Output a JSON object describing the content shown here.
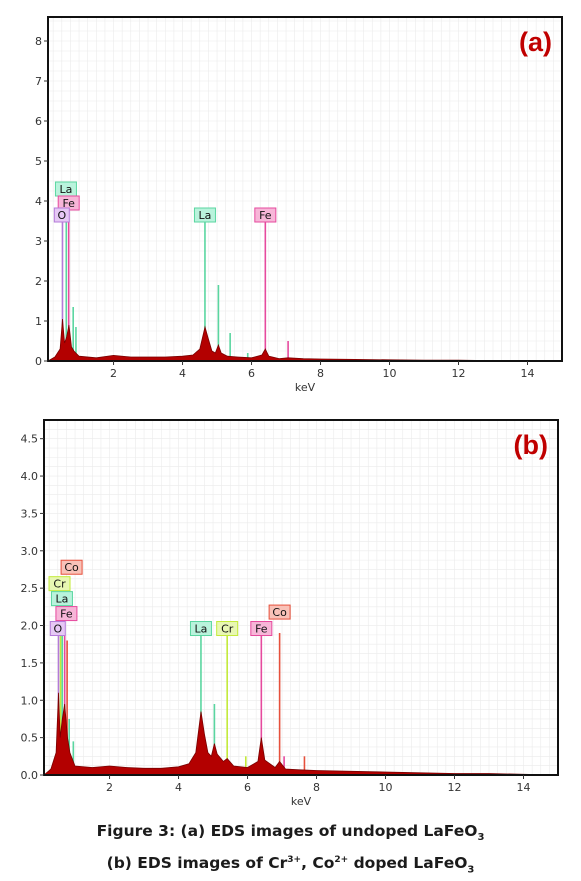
{
  "chart_data": [
    {
      "type": "line",
      "panel_label": "(a)",
      "xlabel": "keV",
      "xlim": [
        0.1,
        15
      ],
      "ylim": [
        0,
        8.6
      ],
      "x_ticks": [
        2,
        4,
        6,
        8,
        10,
        12,
        14
      ],
      "y_ticks": [
        0,
        1,
        2,
        3,
        4,
        5,
        6,
        7,
        8
      ],
      "y_tick_labels": [
        "0",
        "1",
        "2",
        "3",
        "4",
        "5",
        "6",
        "7",
        "8"
      ],
      "grid": true,
      "spectrum_color": "#b30000",
      "peaks": [
        {
          "x": 0.52,
          "y": 4.0,
          "color": "#b47bd9"
        },
        {
          "x": 0.63,
          "y": 3.6,
          "color": "#5ad6a0"
        },
        {
          "x": 0.7,
          "y": 3.5,
          "color": "#e64a9e"
        },
        {
          "x": 0.83,
          "y": 1.35,
          "color": "#5ad6a0"
        },
        {
          "x": 0.91,
          "y": 0.85,
          "color": "#5ad6a0"
        },
        {
          "x": 4.65,
          "y": 3.55,
          "color": "#5ad6a0"
        },
        {
          "x": 5.04,
          "y": 1.9,
          "color": "#5ad6a0"
        },
        {
          "x": 5.38,
          "y": 0.7,
          "color": "#5ad6a0"
        },
        {
          "x": 5.89,
          "y": 0.2,
          "color": "#5ad6a0"
        },
        {
          "x": 6.4,
          "y": 3.55,
          "color": "#e64a9e"
        },
        {
          "x": 7.06,
          "y": 0.5,
          "color": "#e64a9e"
        }
      ],
      "spectrum": [
        [
          0.1,
          0
        ],
        [
          0.3,
          0.1
        ],
        [
          0.45,
          0.3
        ],
        [
          0.52,
          1.05
        ],
        [
          0.58,
          0.45
        ],
        [
          0.64,
          0.6
        ],
        [
          0.71,
          0.9
        ],
        [
          0.78,
          0.35
        ],
        [
          0.85,
          0.25
        ],
        [
          1.0,
          0.12
        ],
        [
          1.5,
          0.08
        ],
        [
          2.0,
          0.14
        ],
        [
          2.5,
          0.1
        ],
        [
          3.0,
          0.1
        ],
        [
          3.5,
          0.1
        ],
        [
          4.0,
          0.12
        ],
        [
          4.3,
          0.15
        ],
        [
          4.5,
          0.3
        ],
        [
          4.65,
          0.85
        ],
        [
          4.75,
          0.55
        ],
        [
          4.85,
          0.25
        ],
        [
          4.95,
          0.2
        ],
        [
          5.04,
          0.4
        ],
        [
          5.12,
          0.2
        ],
        [
          5.3,
          0.12
        ],
        [
          5.6,
          0.1
        ],
        [
          6.0,
          0.08
        ],
        [
          6.3,
          0.15
        ],
        [
          6.4,
          0.3
        ],
        [
          6.5,
          0.12
        ],
        [
          6.8,
          0.06
        ],
        [
          7.06,
          0.08
        ],
        [
          7.5,
          0.06
        ],
        [
          8.0,
          0.05
        ],
        [
          9.0,
          0.04
        ],
        [
          10.0,
          0.03
        ],
        [
          11.0,
          0.02
        ],
        [
          12.0,
          0.02
        ],
        [
          13.0,
          0.01
        ],
        [
          14.0,
          0.01
        ],
        [
          15.0,
          0
        ]
      ],
      "labels": [
        {
          "text": "La",
          "x": 0.62,
          "y": 4.3,
          "bg": "#b9f3dc",
          "border": "#5ad6a0"
        },
        {
          "text": "Fe",
          "x": 0.7,
          "y": 3.95,
          "bg": "#f7b6d8",
          "border": "#e64a9e"
        },
        {
          "text": "O",
          "x": 0.5,
          "y": 3.65,
          "bg": "#e6c8f5",
          "border": "#b47bd9"
        },
        {
          "text": "La",
          "x": 4.65,
          "y": 3.65,
          "bg": "#b9f3dc",
          "border": "#5ad6a0"
        },
        {
          "text": "Fe",
          "x": 6.4,
          "y": 3.65,
          "bg": "#f7b6d8",
          "border": "#e64a9e"
        }
      ]
    },
    {
      "type": "line",
      "panel_label": "(b)",
      "xlabel": "keV",
      "xlim": [
        0.1,
        15
      ],
      "ylim": [
        0,
        4.75
      ],
      "x_ticks": [
        2,
        4,
        6,
        8,
        10,
        12,
        14
      ],
      "y_ticks": [
        0,
        0.5,
        1.0,
        1.5,
        2.0,
        2.5,
        3.0,
        3.5,
        4.0,
        4.5
      ],
      "y_tick_labels": [
        "0.0",
        "0.5",
        "1.0",
        "1.5",
        "2.0",
        "2.5",
        "3.0",
        "3.5",
        "4.0",
        "4.5"
      ],
      "grid": true,
      "spectrum_color": "#b30000",
      "peaks": [
        {
          "x": 0.52,
          "y": 2.2,
          "color": "#b47bd9"
        },
        {
          "x": 0.63,
          "y": 2.05,
          "color": "#5ad6a0"
        },
        {
          "x": 0.7,
          "y": 1.9,
          "color": "#e64a9e"
        },
        {
          "x": 0.77,
          "y": 1.8,
          "color": "#e6503c"
        },
        {
          "x": 0.58,
          "y": 1.9,
          "color": "#c3ea3a"
        },
        {
          "x": 0.83,
          "y": 0.75,
          "color": "#5ad6a0"
        },
        {
          "x": 0.95,
          "y": 0.45,
          "color": "#5ad6a0"
        },
        {
          "x": 4.65,
          "y": 1.9,
          "color": "#5ad6a0"
        },
        {
          "x": 5.04,
          "y": 0.95,
          "color": "#5ad6a0"
        },
        {
          "x": 5.41,
          "y": 1.9,
          "color": "#c3ea3a"
        },
        {
          "x": 5.95,
          "y": 0.25,
          "color": "#c3ea3a"
        },
        {
          "x": 6.4,
          "y": 1.9,
          "color": "#e64a9e"
        },
        {
          "x": 6.93,
          "y": 1.9,
          "color": "#e6503c"
        },
        {
          "x": 7.06,
          "y": 0.25,
          "color": "#e64a9e"
        },
        {
          "x": 7.65,
          "y": 0.25,
          "color": "#e6503c"
        }
      ],
      "spectrum": [
        [
          0.1,
          0
        ],
        [
          0.3,
          0.08
        ],
        [
          0.45,
          0.3
        ],
        [
          0.52,
          1.1
        ],
        [
          0.57,
          0.5
        ],
        [
          0.63,
          0.75
        ],
        [
          0.7,
          0.95
        ],
        [
          0.78,
          0.5
        ],
        [
          0.85,
          0.3
        ],
        [
          1.0,
          0.12
        ],
        [
          1.5,
          0.1
        ],
        [
          2.0,
          0.12
        ],
        [
          2.5,
          0.1
        ],
        [
          3.0,
          0.09
        ],
        [
          3.5,
          0.09
        ],
        [
          4.0,
          0.11
        ],
        [
          4.3,
          0.15
        ],
        [
          4.5,
          0.3
        ],
        [
          4.65,
          0.85
        ],
        [
          4.75,
          0.55
        ],
        [
          4.85,
          0.3
        ],
        [
          4.95,
          0.25
        ],
        [
          5.04,
          0.42
        ],
        [
          5.12,
          0.28
        ],
        [
          5.3,
          0.18
        ],
        [
          5.41,
          0.22
        ],
        [
          5.6,
          0.12
        ],
        [
          6.0,
          0.1
        ],
        [
          6.3,
          0.18
        ],
        [
          6.4,
          0.5
        ],
        [
          6.5,
          0.2
        ],
        [
          6.8,
          0.1
        ],
        [
          6.93,
          0.18
        ],
        [
          7.1,
          0.08
        ],
        [
          7.5,
          0.07
        ],
        [
          8.0,
          0.06
        ],
        [
          9.0,
          0.05
        ],
        [
          10.0,
          0.04
        ],
        [
          11.0,
          0.03
        ],
        [
          12.0,
          0.02
        ],
        [
          13.0,
          0.02
        ],
        [
          14.0,
          0.01
        ],
        [
          15.0,
          0
        ]
      ],
      "labels": [
        {
          "text": "Co",
          "x": 0.9,
          "y": 2.78,
          "bg": "#f9c2b8",
          "border": "#e6503c"
        },
        {
          "text": "Cr",
          "x": 0.55,
          "y": 2.56,
          "bg": "#e8f7b3",
          "border": "#c3ea3a"
        },
        {
          "text": "La",
          "x": 0.62,
          "y": 2.36,
          "bg": "#b9f3dc",
          "border": "#5ad6a0"
        },
        {
          "text": "Fe",
          "x": 0.75,
          "y": 2.16,
          "bg": "#f7b6d8",
          "border": "#e64a9e"
        },
        {
          "text": "O",
          "x": 0.5,
          "y": 1.96,
          "bg": "#e6c8f5",
          "border": "#b47bd9"
        },
        {
          "text": "La",
          "x": 4.65,
          "y": 1.96,
          "bg": "#b9f3dc",
          "border": "#5ad6a0"
        },
        {
          "text": "Cr",
          "x": 5.41,
          "y": 1.96,
          "bg": "#e8f7b3",
          "border": "#c3ea3a"
        },
        {
          "text": "Fe",
          "x": 6.4,
          "y": 1.96,
          "bg": "#f7b6d8",
          "border": "#e64a9e"
        },
        {
          "text": "Co",
          "x": 6.93,
          "y": 2.18,
          "bg": "#f9c2b8",
          "border": "#e6503c"
        }
      ]
    }
  ],
  "caption": {
    "line1_prefix": "Figure 3: (a) EDS images of undoped LaFeO",
    "line1_sub": "3",
    "line2_prefix": "(b) EDS images of Cr",
    "line2_sup1": "3+",
    "line2_mid": ", Co",
    "line2_sup2": "2+",
    "line2_suffix": " doped LaFeO",
    "line2_sub": "3"
  }
}
